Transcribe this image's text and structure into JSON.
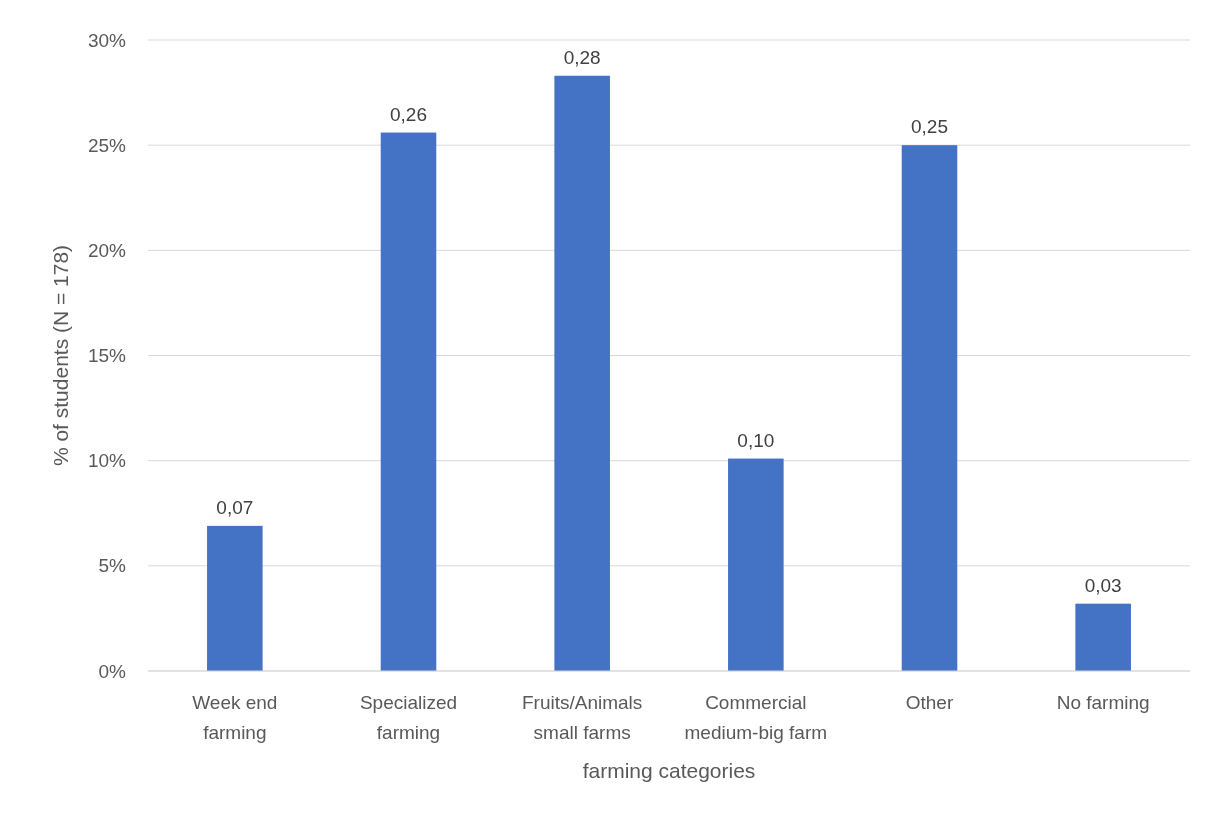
{
  "chart_data": {
    "type": "bar",
    "xlabel": "farming categories",
    "ylabel": "% of students (N = 178)",
    "categories": [
      "Week end farming",
      "Specialized farming",
      "Fruits/Animals small farms",
      "Commercial medium-big farm",
      "Other",
      "No farming"
    ],
    "values": [
      0.069,
      0.256,
      0.283,
      0.101,
      0.25,
      0.032
    ],
    "value_labels": [
      "0,07",
      "0,26",
      "0,28",
      "0,10",
      "0,25",
      "0,03"
    ],
    "color": "#4472c4",
    "ylim": [
      0,
      0.3
    ],
    "yticks": [
      {
        "value": 0,
        "label": "0%"
      },
      {
        "value": 0.05,
        "label": "5%"
      },
      {
        "value": 0.1,
        "label": "10%"
      },
      {
        "value": 0.15,
        "label": "15%"
      },
      {
        "value": 0.2,
        "label": "20%"
      },
      {
        "value": 0.25,
        "label": "25%"
      },
      {
        "value": 0.3,
        "label": "30%"
      }
    ],
    "grid": "y"
  }
}
